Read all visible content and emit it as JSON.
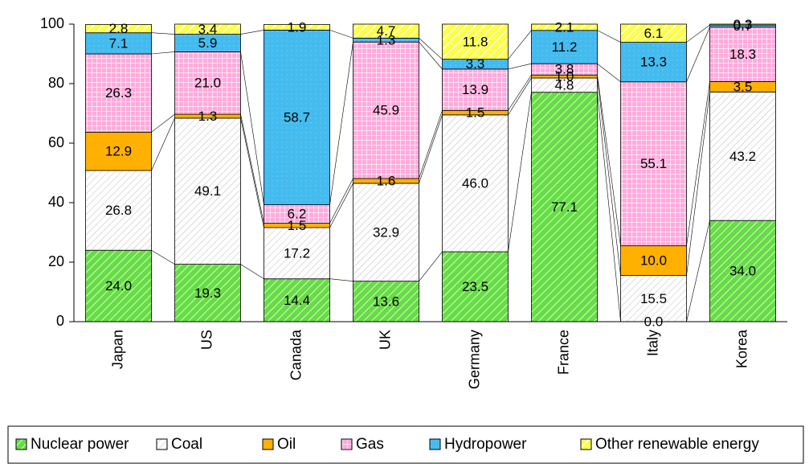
{
  "chart_data": {
    "type": "stacked_bar",
    "categories": [
      "Japan",
      "US",
      "Canada",
      "UK",
      "Germany",
      "France",
      "Italy",
      "Korea"
    ],
    "series": [
      {
        "name": "Nuclear power",
        "color": "#66dd44",
        "values": [
          24.0,
          19.3,
          14.4,
          13.6,
          23.5,
          77.1,
          0.0,
          34.0
        ],
        "value_labels": [
          "24.0",
          "19.3",
          "14.4",
          "13.6",
          "23.5",
          "77.1",
          "0.0",
          "34.0"
        ]
      },
      {
        "name": "Coal",
        "color": "#ffffff",
        "values": [
          26.8,
          49.1,
          17.2,
          32.9,
          46.0,
          4.8,
          15.5,
          43.2
        ],
        "value_labels": [
          "26.8",
          "49.1",
          "17.2",
          "32.9",
          "46.0",
          "4.8",
          "15.5",
          "43.2"
        ]
      },
      {
        "name": "Oil",
        "color": "#ffb000",
        "values": [
          12.9,
          1.3,
          1.5,
          1.6,
          1.5,
          1.0,
          10.0,
          3.5
        ],
        "value_labels": [
          "12.9",
          "1.3",
          "1.5",
          "1.6",
          "1.5",
          "1.0",
          "10.0",
          "3.5"
        ]
      },
      {
        "name": "Gas",
        "color": "#ffaadd",
        "values": [
          26.3,
          21.0,
          6.2,
          45.9,
          13.9,
          3.8,
          55.1,
          18.3
        ],
        "value_labels": [
          "26.3",
          "21.0",
          "6.2",
          "45.9",
          "13.9",
          "3.8",
          "55.1",
          "18.3"
        ]
      },
      {
        "name": "Hydropower",
        "color": "#44bbee",
        "values": [
          7.1,
          5.9,
          58.7,
          1.3,
          3.3,
          11.2,
          13.3,
          0.7
        ],
        "value_labels": [
          "7.1",
          "5.9",
          "58.7",
          "1.3",
          "3.3",
          "11.2",
          "13.3",
          "0.7"
        ]
      },
      {
        "name": "Other renewable energy",
        "color": "#ffff44",
        "values": [
          2.8,
          3.4,
          1.9,
          4.7,
          11.8,
          2.1,
          6.1,
          0.3
        ],
        "value_labels": [
          "2.8",
          "3.4",
          "1.9",
          "4.7",
          "11.8",
          "2.1",
          "6.1",
          "0.3"
        ]
      }
    ],
    "ylim": [
      0,
      100
    ],
    "yticks": [
      0,
      20,
      40,
      60,
      80,
      100
    ],
    "grid": false,
    "legend": "bottom"
  }
}
